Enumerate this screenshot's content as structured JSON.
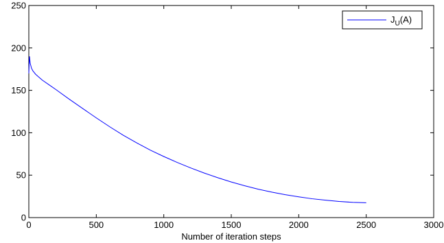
{
  "chart_data": {
    "type": "line",
    "title": "",
    "xlabel": "Number of iteration steps",
    "ylabel": "",
    "xlim": [
      0,
      3000
    ],
    "ylim": [
      0,
      250
    ],
    "xticks": [
      "0",
      "500",
      "1000",
      "1500",
      "2000",
      "2500",
      "3000"
    ],
    "yticks": [
      "0",
      "50",
      "100",
      "150",
      "200",
      "250"
    ],
    "grid": false,
    "legend_position": "top-right",
    "series": [
      {
        "name_main": "J",
        "name_sub": "U",
        "name_tail": "(A)",
        "color": "#0000ff",
        "x": [
          0,
          5,
          10,
          20,
          30,
          50,
          75,
          100,
          150,
          200,
          300,
          400,
          500,
          600,
          700,
          800,
          900,
          1000,
          1100,
          1200,
          1300,
          1400,
          1500,
          1600,
          1700,
          1800,
          1900,
          2000,
          2100,
          2200,
          2300,
          2400,
          2500
        ],
        "y": [
          170,
          190,
          182,
          176,
          173,
          169,
          165.5,
          162,
          156.5,
          151,
          139.5,
          128.5,
          117.5,
          107,
          97,
          88,
          79.5,
          72,
          65,
          58.5,
          52.5,
          47,
          42,
          37.5,
          33.5,
          30,
          27,
          24.5,
          22.2,
          20.5,
          19,
          18,
          17.5
        ]
      }
    ]
  }
}
